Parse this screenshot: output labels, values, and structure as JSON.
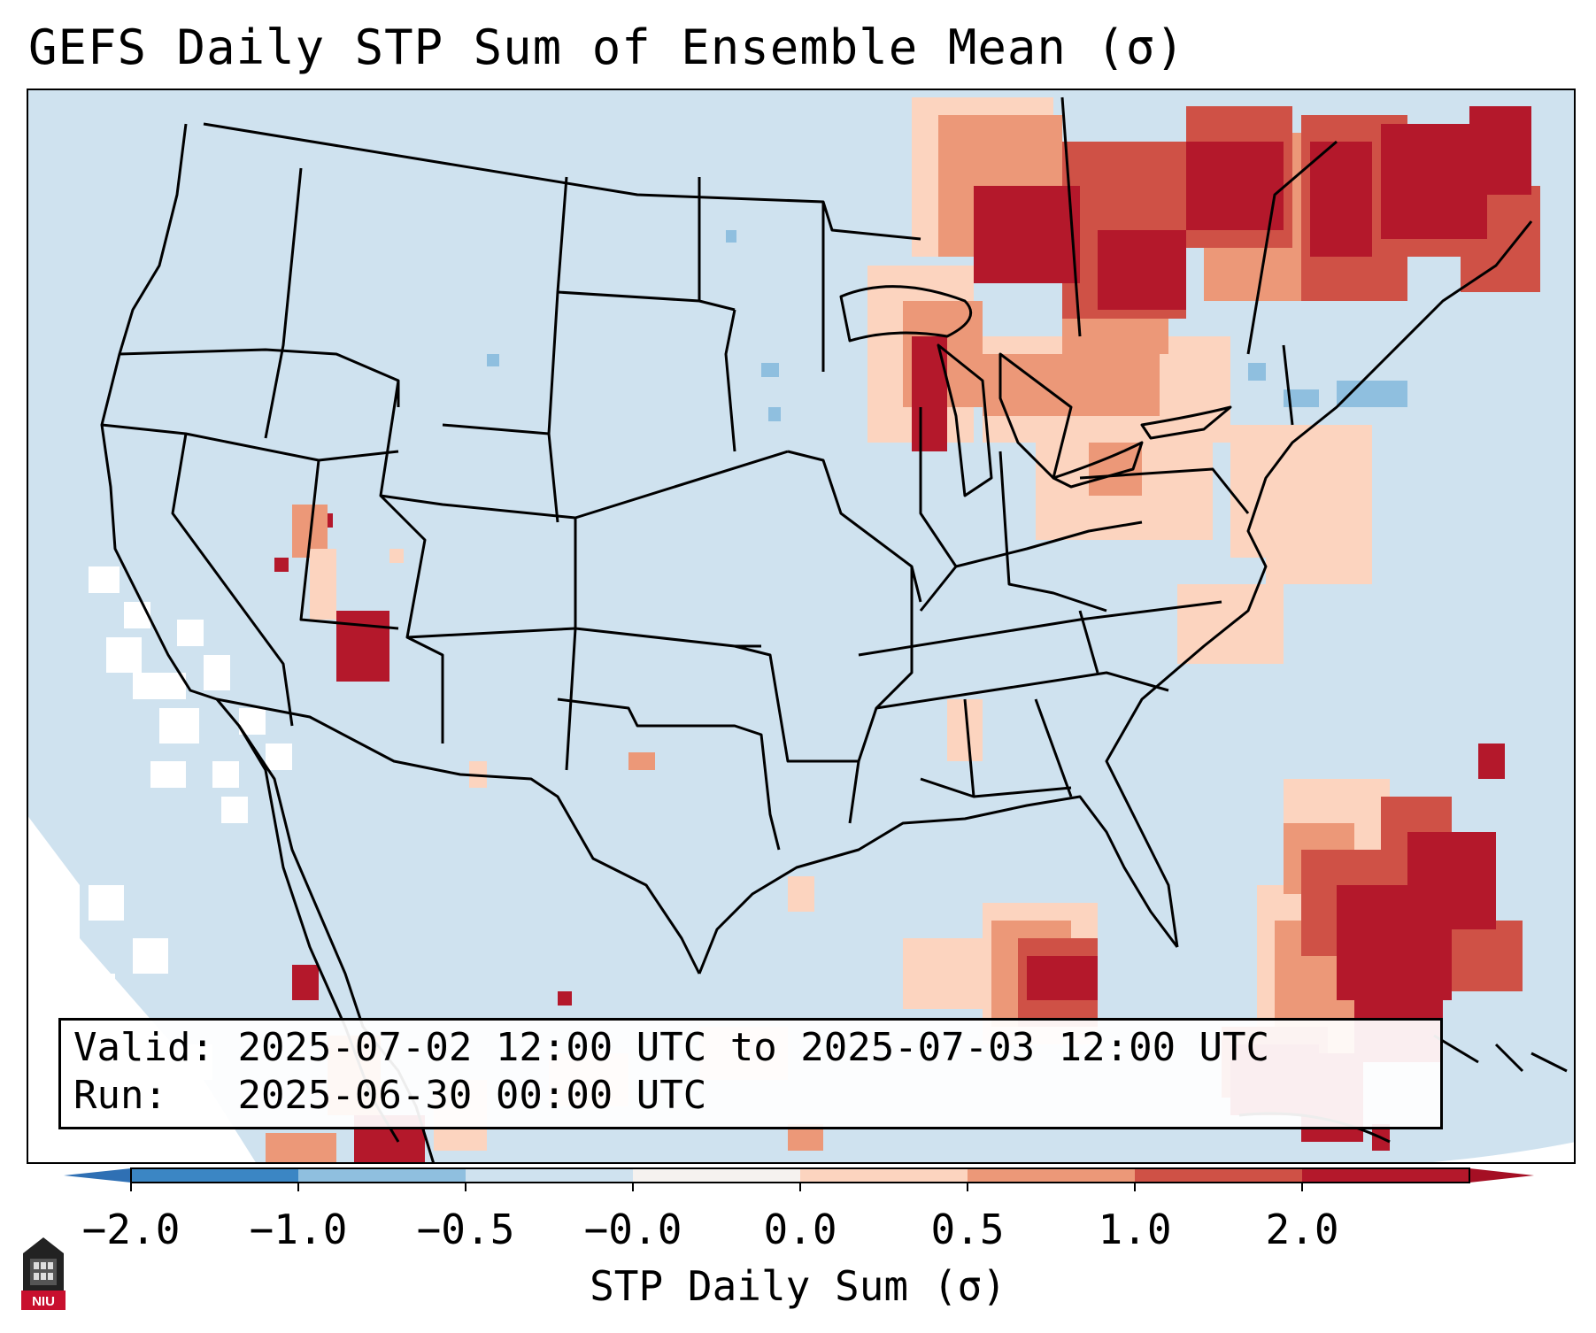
{
  "title": "GEFS Daily STP Sum of Ensemble Mean (σ)",
  "info": {
    "valid_label": "Valid:",
    "valid_value": "2025-07-02 12:00 UTC to 2025-07-03 12:00 UTC",
    "run_label": "Run:",
    "run_value": "2025-06-30 00:00 UTC"
  },
  "colorbar": {
    "label": "STP Daily Sum (σ)",
    "ticks": [
      "−2.0",
      "−1.0",
      "−0.5",
      "−0.0",
      "0.0",
      "0.5",
      "1.0",
      "2.0"
    ],
    "colors": [
      "#3b86c4",
      "#8fbfdf",
      "#cfe2ef",
      "#f5f2ef",
      "#fcd4bf",
      "#ec9878",
      "#cf5146",
      "#b4182b"
    ],
    "extend_low_color": "#2f70b4",
    "extend_high_color": "#a50f24"
  },
  "map": {
    "background_color": "#cfe2ef",
    "outside_color": "#ffffff",
    "region": "Contiguous United States with southern Canada, northern Mexico, Gulf of Mexico and western Atlantic"
  },
  "logo_text": "NIU"
}
